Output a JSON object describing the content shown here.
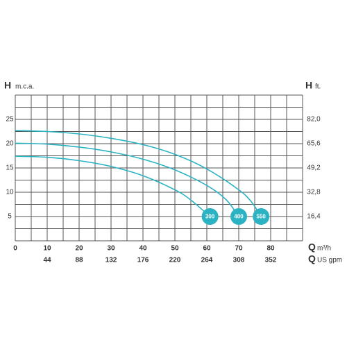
{
  "chart_data": {
    "type": "line",
    "y_symbol": "H",
    "y_unit": "m.c.a.",
    "y2_symbol": "H",
    "y2_unit": "ft.",
    "x_symbol": "Q",
    "x_unit": "m³/h",
    "x2_symbol": "Q",
    "x2_unit": "US gpm",
    "xlim": [
      0,
      90
    ],
    "xticks": [
      0,
      10,
      20,
      30,
      40,
      50,
      60,
      70,
      80
    ],
    "x2lim": [
      0,
      396
    ],
    "x2ticks": [
      44,
      88,
      132,
      176,
      220,
      264,
      308,
      352
    ],
    "ylim": [
      0,
      30
    ],
    "yticks": [
      5,
      10,
      15,
      20,
      25
    ],
    "y2lim": [
      0,
      98.4
    ],
    "y2ticks": [
      {
        "value": 16.4,
        "label": "16,4"
      },
      {
        "value": 32.8,
        "label": "32,8"
      },
      {
        "value": 49.2,
        "label": "49,2"
      },
      {
        "value": 65.6,
        "label": "65,6"
      },
      {
        "value": 82.0,
        "label": "82,0"
      }
    ],
    "xgrid": [
      0,
      5,
      10,
      15,
      20,
      25,
      30,
      35,
      40,
      45,
      50,
      55,
      60,
      65,
      70,
      75,
      80,
      85,
      90
    ],
    "ygrid": [
      0,
      2.5,
      5,
      7.5,
      10,
      12.5,
      15,
      17.5,
      20,
      22.5,
      25,
      27.5,
      30
    ],
    "grid": true,
    "color": "#2bb3c3",
    "series": [
      {
        "name": "300",
        "x": [
          0,
          10,
          20,
          30,
          40,
          50,
          55,
          61
        ],
        "values": [
          17.4,
          17.2,
          16.5,
          15.3,
          13.4,
          10.5,
          8.4,
          5
        ]
      },
      {
        "name": "400",
        "x": [
          0,
          10,
          20,
          30,
          40,
          50,
          60,
          66,
          70
        ],
        "values": [
          20.1,
          19.9,
          19.3,
          18.3,
          16.8,
          14.6,
          11.4,
          8.5,
          5
        ]
      },
      {
        "name": "550",
        "x": [
          0,
          10,
          20,
          30,
          40,
          50,
          60,
          70,
          74,
          77
        ],
        "values": [
          22.7,
          22.5,
          22,
          21.1,
          19.8,
          17.8,
          14.8,
          10.5,
          8,
          5
        ]
      }
    ]
  }
}
